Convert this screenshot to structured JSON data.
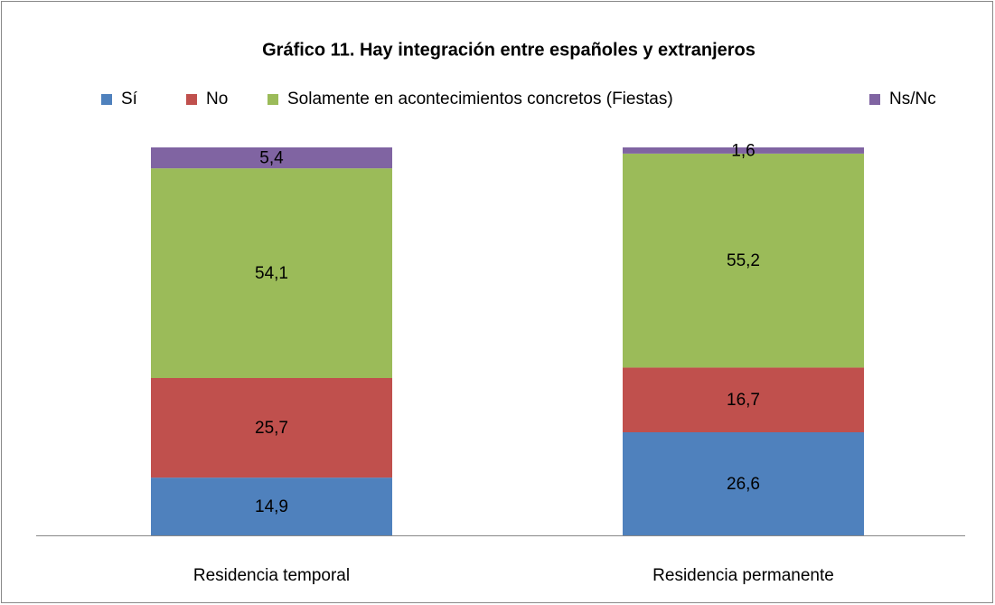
{
  "chart_data": {
    "type": "stacked_bar",
    "title": "Gráfico 11. Hay integración entre españoles y extranjeros",
    "categories": [
      "Residencia temporal",
      "Residencia permanente"
    ],
    "series": [
      {
        "name": "Sí",
        "color": "#4f81bd",
        "values": [
          14.9,
          26.6
        ],
        "value_labels": [
          "14,9",
          "26,6"
        ]
      },
      {
        "name": "No",
        "color": "#c0504d",
        "values": [
          25.7,
          16.7
        ],
        "value_labels": [
          "25,7",
          "16,7"
        ]
      },
      {
        "name": "Solamente en acontecimientos concretos (Fiestas)",
        "color": "#9bbb59",
        "values": [
          54.1,
          55.2
        ],
        "value_labels": [
          "54,1",
          "55,2"
        ]
      },
      {
        "name": "Ns/Nc",
        "color": "#8064a2",
        "values": [
          5.4,
          1.6
        ],
        "value_labels": [
          "5,4",
          "1,6"
        ]
      }
    ],
    "legend": "top"
  }
}
